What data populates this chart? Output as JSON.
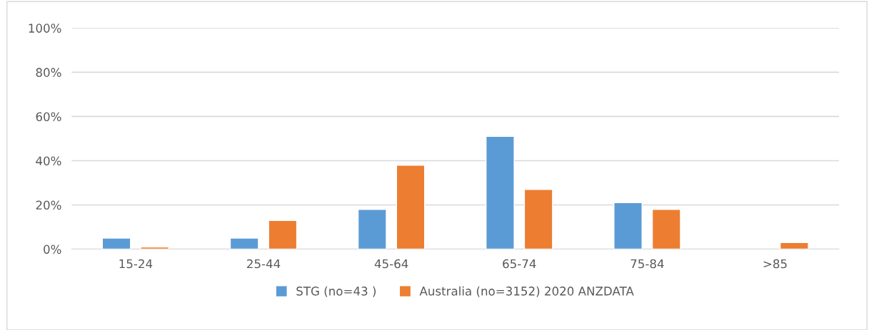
{
  "chart_data": {
    "type": "bar",
    "categories": [
      "15-24",
      "25-44",
      "45-64",
      "65-74",
      "75-84",
      ">85"
    ],
    "series": [
      {
        "name": "STG (no=43 )",
        "color": "#5b9bd5",
        "values": [
          5,
          5,
          18,
          51,
          21,
          null
        ]
      },
      {
        "name": "Australia (no=3152) 2020 ANZDATA",
        "color": "#ed7d31",
        "values": [
          1,
          13,
          38,
          27,
          18,
          3
        ]
      }
    ],
    "ylim": [
      0,
      100
    ],
    "yticks": [
      {
        "value": 0,
        "label": "0%"
      },
      {
        "value": 20,
        "label": "20%"
      },
      {
        "value": 40,
        "label": "40%"
      },
      {
        "value": 60,
        "label": "60%"
      },
      {
        "value": 80,
        "label": "80%"
      },
      {
        "value": 100,
        "label": "100%"
      }
    ],
    "grid": "y",
    "legend": "bottom"
  }
}
